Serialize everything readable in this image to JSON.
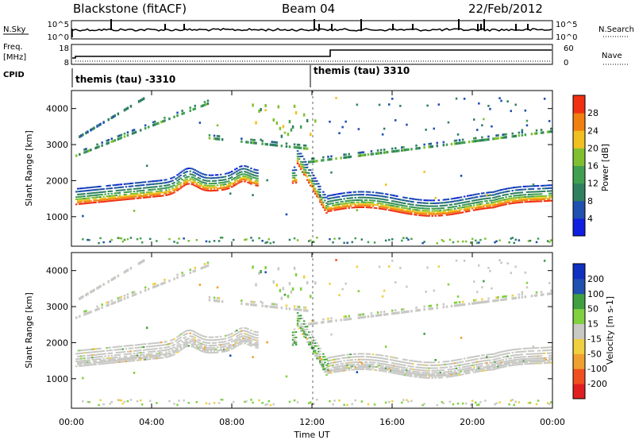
{
  "header": {
    "station": "Blackstone (fitACF)",
    "beam": "Beam 04",
    "date": "22/Feb/2012"
  },
  "noise_panel": {
    "left_label": "N.Sky",
    "right_label": "N.Search",
    "ticks_left": [
      "10^5",
      "10^0"
    ],
    "ticks_right": [
      "10^5",
      "10^0"
    ]
  },
  "freq_panel": {
    "left_label_1": "Freq.",
    "left_label_2": "[MHz]",
    "right_label": "Nave",
    "ticks_left": [
      "18",
      "8"
    ],
    "ticks_right": [
      "60",
      "0"
    ]
  },
  "cpid": {
    "label": "CPID",
    "segments": [
      {
        "name": "themis (tau) -3310",
        "start_hour": 0
      },
      {
        "name": "themis (tau) 3310",
        "start_hour": 12.5
      }
    ]
  },
  "chart_data": [
    {
      "type": "heatmap",
      "parameter": "Power",
      "ylabel": "Slant Range [km]",
      "ylim": [
        180,
        4500
      ],
      "yticks": [
        "4000",
        "3000",
        "2000",
        "1000"
      ],
      "colorbar_label": "Power [dB]",
      "colorbar_ticks": [
        "28",
        "24",
        "20",
        "16",
        "12",
        "8",
        "4"
      ],
      "colorbar_range": [
        0,
        32
      ],
      "colors": [
        "#1020e0",
        "#2050b0",
        "#308060",
        "#40a050",
        "#80c030",
        "#f0c020",
        "#f08010",
        "#f03010"
      ]
    },
    {
      "type": "heatmap",
      "parameter": "Velocity",
      "ylabel": "Slant Range [km]",
      "ylim": [
        180,
        4500
      ],
      "yticks": [
        "4000",
        "3000",
        "2000",
        "1000"
      ],
      "colorbar_label": "Velocity [m s-1]",
      "colorbar_ticks": [
        "200",
        "100",
        "50",
        "15",
        "-15",
        "-50",
        "-100",
        "-200"
      ],
      "colorbar_range": [
        -250,
        250
      ],
      "colors": [
        "#e02020",
        "#f05020",
        "#f0a030",
        "#f0d040",
        "#c8c8c4",
        "#80d040",
        "#40a040",
        "#2050b0",
        "#1030c0"
      ],
      "xlabel": "Time UT",
      "xticks": [
        "00:00",
        "04:00",
        "08:00",
        "12:00",
        "16:00",
        "20:00",
        "00:00"
      ],
      "xlim_hours": [
        0,
        24
      ]
    }
  ]
}
